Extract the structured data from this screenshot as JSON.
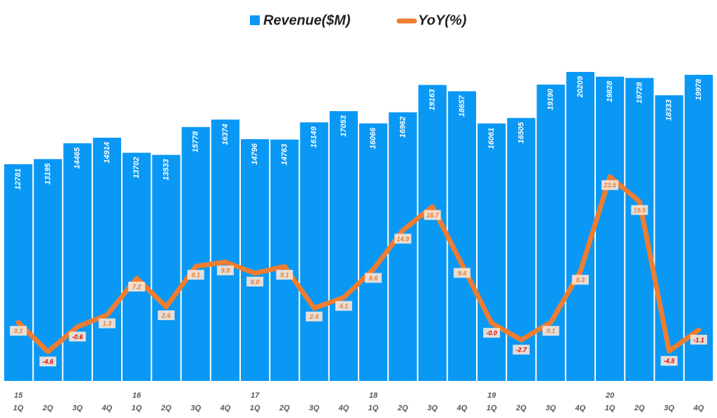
{
  "chart_data": {
    "type": "bar_line",
    "categories": [
      "1Q",
      "2Q",
      "3Q",
      "4Q",
      "1Q",
      "2Q",
      "3Q",
      "4Q",
      "1Q",
      "2Q",
      "3Q",
      "4Q",
      "1Q",
      "2Q",
      "3Q",
      "4Q",
      "1Q",
      "2Q",
      "3Q",
      "4Q",
      "1Q",
      "2Q",
      "3Q",
      "4Q"
    ],
    "groups": [
      "15",
      null,
      null,
      null,
      "16",
      null,
      null,
      null,
      "17",
      null,
      null,
      null,
      "18",
      null,
      null,
      null,
      "19",
      null,
      null,
      null,
      "20",
      null,
      null,
      null
    ],
    "series": [
      {
        "name": "Revenue($M)",
        "color": "#0a98f5",
        "values": [
          12781,
          13195,
          14465,
          14914,
          13702,
          13533,
          15778,
          16374,
          14796,
          14763,
          16149,
          17053,
          16066,
          16962,
          19163,
          18657,
          16061,
          16505,
          19190,
          20209,
          19828,
          19728,
          18333,
          19978
        ]
      },
      {
        "name": "YoY(%)",
        "color": "#ed7d31",
        "axis": "y2",
        "values": [
          0.1,
          -4.6,
          -0.6,
          1.3,
          7.2,
          2.6,
          9.1,
          9.8,
          8.0,
          9.1,
          2.4,
          4.1,
          8.6,
          14.9,
          18.7,
          9.4,
          -0.0,
          -2.7,
          0.1,
          8.3,
          23.5,
          19.5,
          -4.5,
          -1.1
        ],
        "value_labels": [
          "0.1",
          "-4.6",
          "-0.6",
          "1.3",
          "7.2",
          "2.6",
          "9.1",
          "9.8",
          "8.0",
          "9.1",
          "2.4",
          "4.1",
          "8.6",
          "14.9",
          "18.7",
          "9.4",
          "-0.0",
          "-2.7",
          "0.1",
          "8.3",
          "23.5",
          "19.5",
          "-4.5",
          "-1.1"
        ]
      }
    ],
    "ylim": [
      -4670,
      21500
    ],
    "y2lim": [
      -9.3,
      42.9
    ]
  }
}
